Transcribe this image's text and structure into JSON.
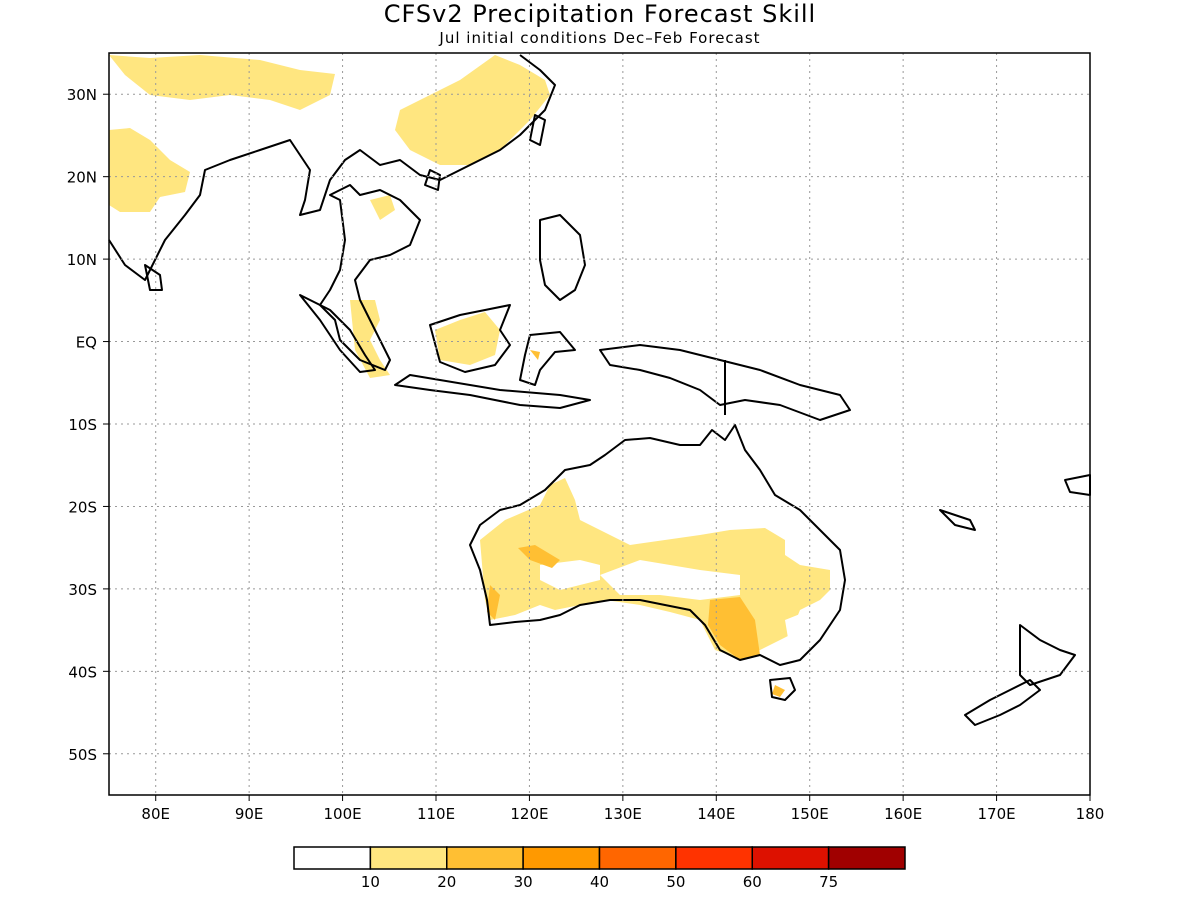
{
  "title": "CFSv2 Precipitation Forecast Skill",
  "subtitle": "Jul initial conditions  Dec–Feb Forecast",
  "map": {
    "lon_range": [
      75,
      180
    ],
    "lat_range": [
      -55,
      35
    ],
    "lat_labels": [
      "30N",
      "20N",
      "10N",
      "EQ",
      "10S",
      "20S",
      "30S",
      "40S",
      "50S"
    ],
    "lon_labels": [
      "80E",
      "90E",
      "100E",
      "110E",
      "120E",
      "130E",
      "140E",
      "150E",
      "160E",
      "170E",
      "180"
    ],
    "grid": "dotted"
  },
  "colorbar": {
    "labels": [
      "10",
      "20",
      "30",
      "40",
      "50",
      "60",
      "75"
    ],
    "colors": [
      "#ffffff",
      "#ffe680",
      "#ffbf33",
      "#ff9900",
      "#ff6600",
      "#ff3300",
      "#dd1100",
      "#a00000"
    ]
  }
}
